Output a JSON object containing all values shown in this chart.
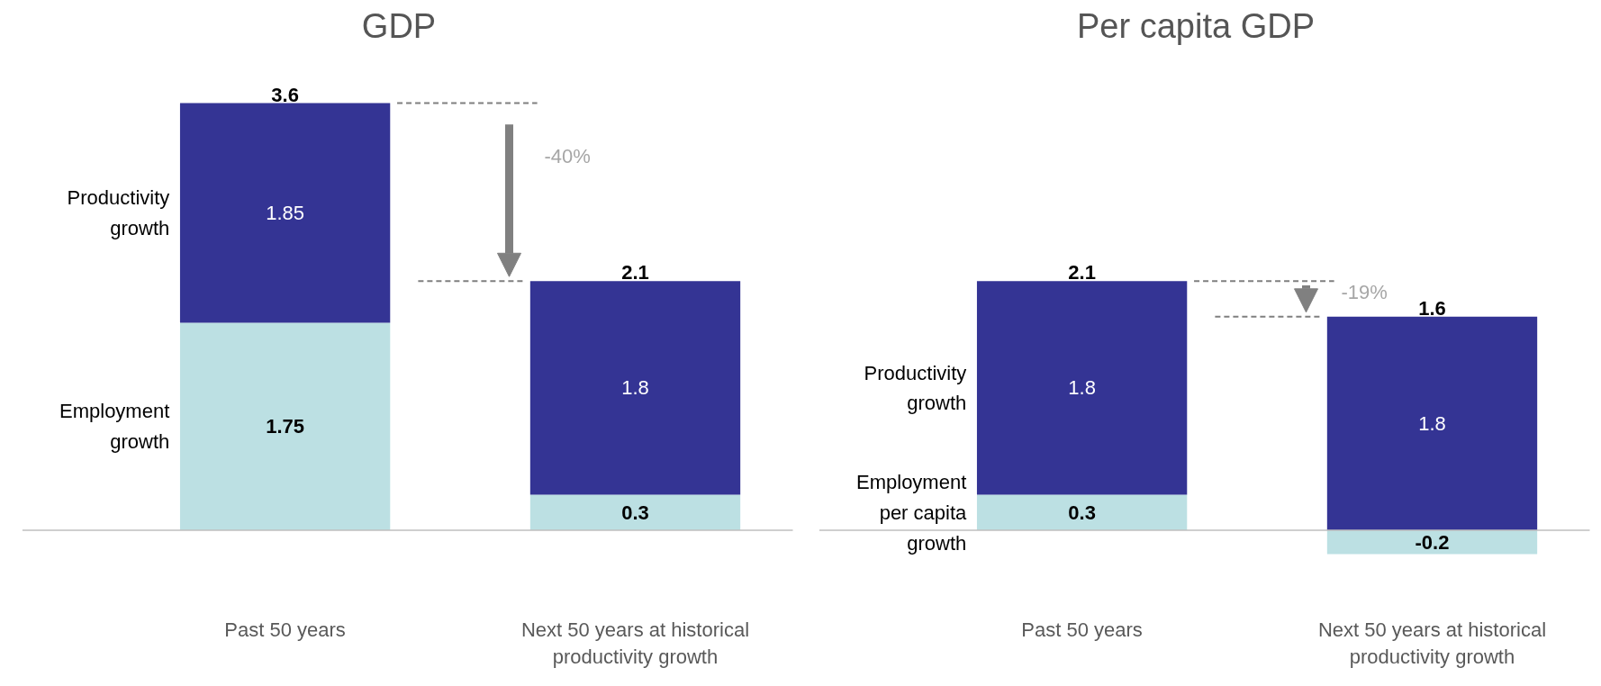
{
  "chart_data": [
    {
      "type": "bar",
      "title": "GDP",
      "categories": [
        "Past 50 years",
        "Next 50 years at historical productivity growth"
      ],
      "stacked": true,
      "data_labels": true,
      "totals": [
        "3.6",
        "2.1"
      ],
      "annotations": [
        "-40%"
      ],
      "ref_lines": [
        {
          "axis": "y",
          "value": 3.6,
          "color": "#7f7f7f",
          "line_style": "dashed"
        },
        {
          "axis": "y",
          "value": 2.1,
          "color": "#7f7f7f",
          "line_style": "dashed"
        }
      ],
      "series": [
        {
          "name": "Employment growth",
          "color": "#bce0e3",
          "values": [
            1.75,
            0.3
          ]
        },
        {
          "name": "Productivity growth",
          "color": "#343494",
          "values": [
            1.85,
            1.8
          ]
        }
      ]
    },
    {
      "type": "bar",
      "title": "Per capita GDP",
      "categories": [
        "Past 50 years",
        "Next 50 years at historical productivity growth"
      ],
      "stacked": true,
      "data_labels": true,
      "totals": [
        "2.1",
        "1.6"
      ],
      "annotations": [
        "-19%"
      ],
      "ref_lines": [
        {
          "axis": "y",
          "value": 2.1,
          "color": "#7f7f7f",
          "line_style": "dashed"
        },
        {
          "axis": "y",
          "value": 1.8,
          "color": "#7f7f7f",
          "line_style": "dashed"
        }
      ],
      "series": [
        {
          "name": "Employment per capita growth",
          "color": "#bce0e3",
          "values": [
            0.3,
            -0.2
          ]
        },
        {
          "name": "Productivity growth",
          "color": "#343494",
          "values": [
            1.8,
            1.8
          ]
        }
      ]
    }
  ]
}
